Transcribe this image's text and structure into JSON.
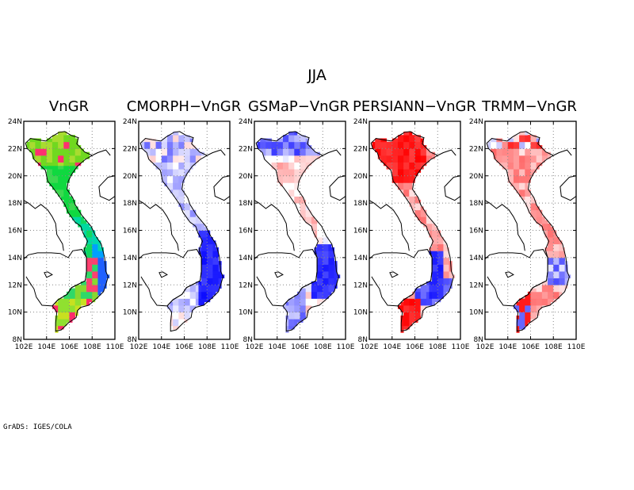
{
  "figure": {
    "title": "JJA",
    "credit": "GrADS: IGES/COLA"
  },
  "panels": [
    {
      "title": "VnGR",
      "scheme": "absolute"
    },
    {
      "title": "CMORPH−VnGR",
      "scheme": "diff_blue"
    },
    {
      "title": "GSMaP−VnGR",
      "scheme": "diff_mixed"
    },
    {
      "title": "PERSIANN−VnGR",
      "scheme": "diff_red"
    },
    {
      "title": "TRMM−VnGR",
      "scheme": "diff_mixed_red"
    }
  ],
  "axes": {
    "x_ticks": [
      "102E",
      "104E",
      "106E",
      "108E",
      "110E"
    ],
    "y_ticks": [
      "24N",
      "22N",
      "20N",
      "18N",
      "16N",
      "14N",
      "12N",
      "10N",
      "8N"
    ],
    "lon_range": [
      102,
      110
    ],
    "lat_range": [
      8,
      24
    ],
    "grid": "dotted"
  },
  "colors": {
    "positive": "#ff0000",
    "negative": "#0000ff",
    "coast": "#000000"
  }
}
